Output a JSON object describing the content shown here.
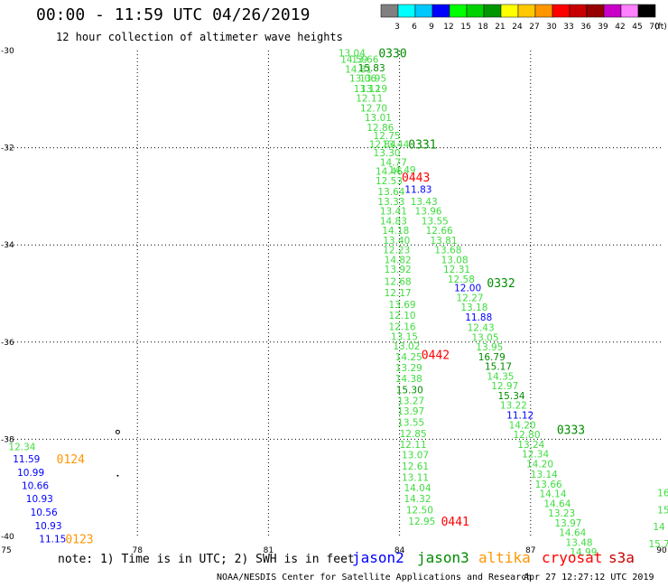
{
  "title": "00:00 - 11:59 UTC 04/26/2019",
  "subtitle": "12 hour collection of altimeter wave heights",
  "legend": {
    "unit": "(ft)",
    "labels": [
      "3",
      "6",
      "9",
      "12",
      "15",
      "18",
      "21",
      "24",
      "27",
      "30",
      "33",
      "36",
      "39",
      "42",
      "45",
      "70"
    ],
    "colors": [
      "#808080",
      "#00ffff",
      "#00c8ff",
      "#0000ff",
      "#00ff00",
      "#00d200",
      "#009600",
      "#ffff00",
      "#ffc800",
      "#ff9600",
      "#ff0000",
      "#c80000",
      "#960000",
      "#c800c8",
      "#ff80ff",
      "#000000"
    ]
  },
  "note": "note: 1) Time is in UTC; 2) SWH is in feet",
  "satellites": [
    {
      "name": "jason2",
      "color": "#0000ff"
    },
    {
      "name": "jason3",
      "color": "#008c00"
    },
    {
      "name": "altika",
      "color": "#ff9600"
    },
    {
      "name": "cryosat",
      "color": "#ff0000"
    },
    {
      "name": "s3a",
      "color": "#c80000"
    }
  ],
  "footer": "NOAA/NESDIS Center for Satellite Applications and Research",
  "footer_time": "Apr 27 12:27:12 UTC 2019",
  "chart_data": {
    "type": "scatter",
    "xlim": [
      75,
      90
    ],
    "ylim": [
      -40,
      -30
    ],
    "xticks": [
      75,
      78,
      81,
      84,
      87,
      90
    ],
    "xtick_labels": [
      "75",
      "78",
      "81",
      "84",
      "87",
      "90"
    ],
    "yticks": [
      -30,
      -32,
      -34,
      -36,
      -38,
      -40
    ],
    "ytick_labels": [
      "-30",
      "-32",
      "-34",
      "-36",
      "-38",
      "-40"
    ],
    "grid": true,
    "tracks": [
      {
        "time": "0330",
        "color": "#008c00",
        "time_x": 83.52,
        "time_y": -30.05,
        "points": [
          [
            82.6,
            -30.05,
            "13.04",
            "#40dc40"
          ],
          [
            82.65,
            -30.18,
            "14.59",
            "#40dc40"
          ],
          [
            82.9,
            -30.18,
            "13.66",
            "#40dc40"
          ],
          [
            82.75,
            -30.38,
            "14.81",
            "#40dc40"
          ],
          [
            83.05,
            -30.35,
            "15.83",
            "#008c00"
          ],
          [
            82.85,
            -30.57,
            "13.06",
            "#40dc40"
          ],
          [
            83.08,
            -30.57,
            "13.95",
            "#40dc40"
          ],
          [
            82.95,
            -30.78,
            "13.12",
            "#40dc40"
          ],
          [
            83.1,
            -30.78,
            "13.19",
            "#40dc40"
          ],
          [
            83.0,
            -30.98,
            "12.11",
            "#40dc40"
          ],
          [
            83.1,
            -31.18,
            "12.70",
            "#40dc40"
          ],
          [
            83.2,
            -31.38,
            "13.01",
            "#40dc40"
          ],
          [
            83.25,
            -31.58,
            "12.86",
            "#40dc40"
          ],
          [
            83.4,
            -31.75,
            "12.75",
            "#40dc40"
          ],
          [
            83.3,
            -31.92,
            "12.84",
            "#40dc40"
          ],
          [
            83.6,
            -31.92,
            "13.44",
            "#40dc40"
          ],
          [
            83.4,
            -32.1,
            "13.30",
            "#40dc40"
          ],
          [
            83.55,
            -32.3,
            "14.77",
            "#40dc40"
          ],
          [
            83.45,
            -32.48,
            "14.46",
            "#40dc40"
          ],
          [
            83.75,
            -32.45,
            "14.49",
            "#40dc40"
          ],
          [
            83.45,
            -32.68,
            "12.53",
            "#40dc40"
          ],
          [
            83.5,
            -32.9,
            "13.64",
            "#40dc40"
          ],
          [
            83.5,
            -33.1,
            "13.33",
            "#40dc40"
          ],
          [
            83.55,
            -33.3,
            "13.41",
            "#40dc40"
          ],
          [
            83.55,
            -33.5,
            "14.83",
            "#40dc40"
          ],
          [
            83.6,
            -33.7,
            "14.18",
            "#40dc40"
          ],
          [
            83.62,
            -33.9,
            "13.40",
            "#40dc40"
          ],
          [
            83.62,
            -34.1,
            "12.23",
            "#40dc40"
          ],
          [
            83.65,
            -34.3,
            "14.82",
            "#40dc40"
          ],
          [
            83.65,
            -34.5,
            "13.92",
            "#40dc40"
          ],
          [
            83.65,
            -34.75,
            "12.68",
            "#40dc40"
          ],
          [
            83.65,
            -34.98,
            "12.17",
            "#40dc40"
          ],
          [
            83.75,
            -35.22,
            "13.69",
            "#40dc40"
          ],
          [
            83.75,
            -35.45,
            "12.10",
            "#40dc40"
          ],
          [
            83.75,
            -35.68,
            "12.16",
            "#40dc40"
          ],
          [
            83.8,
            -35.88,
            "13.15",
            "#40dc40"
          ],
          [
            83.85,
            -36.08,
            "13.02",
            "#40dc40"
          ],
          [
            83.9,
            -36.3,
            "14.25",
            "#40dc40"
          ],
          [
            83.9,
            -36.52,
            "13.29",
            "#40dc40"
          ],
          [
            83.9,
            -36.75,
            "14.38",
            "#40dc40"
          ],
          [
            83.92,
            -36.98,
            "15.30",
            "#008c00"
          ],
          [
            83.95,
            -37.2,
            "13.27",
            "#40dc40"
          ],
          [
            83.95,
            -37.42,
            "13.97",
            "#40dc40"
          ],
          [
            83.95,
            -37.65,
            "13.55",
            "#40dc40"
          ],
          [
            84.0,
            -37.88,
            "12.85",
            "#40dc40"
          ],
          [
            84.0,
            -38.1,
            "12.11",
            "#40dc40"
          ],
          [
            84.05,
            -38.32,
            "13.07",
            "#40dc40"
          ],
          [
            84.05,
            -38.55,
            "12.61",
            "#40dc40"
          ],
          [
            84.05,
            -38.78,
            "13.11",
            "#40dc40"
          ],
          [
            84.1,
            -39.0,
            "14.04",
            "#40dc40"
          ],
          [
            84.1,
            -39.22,
            "14.32",
            "#40dc40"
          ],
          [
            84.15,
            -39.45,
            "12.50",
            "#40dc40"
          ],
          [
            84.2,
            -39.68,
            "12.95",
            "#40dc40"
          ]
        ]
      },
      {
        "time": "0331",
        "color": "#008c00",
        "time_x": 84.2,
        "time_y": -31.92,
        "points": []
      },
      {
        "time": "0443",
        "color": "#ff0000",
        "time_x": 84.05,
        "time_y": -32.6,
        "points": [
          [
            84.12,
            -32.85,
            "11.83",
            "#0000ff"
          ]
        ]
      },
      {
        "time": "0332",
        "color": "#008c00",
        "time_x": 86.0,
        "time_y": -34.78,
        "points": [
          [
            84.25,
            -33.1,
            "13.43",
            "#40dc40"
          ],
          [
            84.35,
            -33.3,
            "13.96",
            "#40dc40"
          ],
          [
            84.5,
            -33.5,
            "13.55",
            "#40dc40"
          ],
          [
            84.6,
            -33.7,
            "12.66",
            "#40dc40"
          ],
          [
            84.7,
            -33.9,
            "13.81",
            "#40dc40"
          ],
          [
            84.8,
            -34.1,
            "13.68",
            "#40dc40"
          ],
          [
            84.95,
            -34.3,
            "13.08",
            "#40dc40"
          ],
          [
            85.0,
            -34.5,
            "12.31",
            "#40dc40"
          ],
          [
            85.1,
            -34.7,
            "12.58",
            "#40dc40"
          ],
          [
            85.25,
            -34.88,
            "12.00",
            "#0000ff"
          ],
          [
            85.3,
            -35.08,
            "12.27",
            "#40dc40"
          ],
          [
            85.4,
            -35.28,
            "13.18",
            "#40dc40"
          ],
          [
            85.5,
            -35.48,
            "11.88",
            "#0000ff"
          ],
          [
            85.55,
            -35.7,
            "12.43",
            "#40dc40"
          ],
          [
            85.65,
            -35.9,
            "13.05",
            "#40dc40"
          ],
          [
            85.75,
            -36.1,
            "13.95",
            "#40dc40"
          ],
          [
            85.8,
            -36.3,
            "16.79",
            "#008c00"
          ],
          [
            85.95,
            -36.5,
            "15.17",
            "#008c00"
          ],
          [
            86.0,
            -36.7,
            "14.35",
            "#40dc40"
          ],
          [
            86.1,
            -36.9,
            "12.97",
            "#40dc40"
          ],
          [
            86.25,
            -37.1,
            "15.34",
            "#008c00"
          ],
          [
            86.3,
            -37.3,
            "13.22",
            "#40dc40"
          ],
          [
            86.45,
            -37.5,
            "11.12",
            "#0000ff"
          ],
          [
            86.5,
            -37.7,
            "14.20",
            "#40dc40"
          ],
          [
            86.6,
            -37.9,
            "12.80",
            "#40dc40"
          ],
          [
            86.7,
            -38.1,
            "13.24",
            "#40dc40"
          ],
          [
            86.8,
            -38.3,
            "12.34",
            "#40dc40"
          ],
          [
            86.9,
            -38.5,
            "14.20",
            "#40dc40"
          ],
          [
            87.0,
            -38.72,
            "13.14",
            "#40dc40"
          ],
          [
            87.1,
            -38.92,
            "13.66",
            "#40dc40"
          ],
          [
            87.2,
            -39.12,
            "14.14",
            "#40dc40"
          ],
          [
            87.3,
            -39.32,
            "14.64",
            "#40dc40"
          ],
          [
            87.4,
            -39.52,
            "13.23",
            "#40dc40"
          ],
          [
            87.55,
            -39.72,
            "13.97",
            "#40dc40"
          ],
          [
            87.65,
            -39.92,
            "14.64",
            "#40dc40"
          ],
          [
            87.8,
            -40.12,
            "13.48",
            "#40dc40"
          ],
          [
            87.9,
            -40.32,
            "14.99",
            "#40dc40"
          ]
        ]
      },
      {
        "time": "0442",
        "color": "#ff0000",
        "time_x": 84.5,
        "time_y": -36.25,
        "points": []
      },
      {
        "time": "0333",
        "color": "#008c00",
        "time_x": 87.6,
        "time_y": -37.8,
        "points": []
      },
      {
        "time": "0441",
        "color": "#ff0000",
        "time_x": 84.95,
        "time_y": -39.68,
        "points": []
      },
      {
        "time": "0124",
        "color": "#ff9600",
        "time_x": 76.15,
        "time_y": -38.4,
        "points": [
          [
            75.05,
            -38.15,
            "12.34",
            "#40dc40"
          ],
          [
            75.15,
            -38.4,
            "11.59",
            "#0000ff"
          ],
          [
            75.25,
            -38.68,
            "10.99",
            "#0000ff"
          ],
          [
            75.35,
            -38.95,
            "10.66",
            "#0000ff"
          ],
          [
            75.45,
            -39.22,
            "10.93",
            "#0000ff"
          ],
          [
            75.55,
            -39.5,
            "10.56",
            "#0000ff"
          ],
          [
            75.65,
            -39.78,
            "10.93",
            "#0000ff"
          ],
          [
            75.75,
            -40.05,
            "11.15",
            "#0000ff"
          ]
        ]
      },
      {
        "time": "0123",
        "color": "#ff9600",
        "time_x": 76.35,
        "time_y": -40.05,
        "points": []
      },
      {
        "time": "",
        "color": "#40dc40",
        "time_x": 90.0,
        "time_y": -39.0,
        "points": [
          [
            89.9,
            -39.1,
            "16",
            "#40dc40"
          ],
          [
            89.9,
            -39.45,
            "15",
            "#40dc40"
          ],
          [
            89.8,
            -39.8,
            "14",
            "#40dc40"
          ],
          [
            89.7,
            -40.15,
            "15.7",
            "#40dc40"
          ]
        ]
      }
    ]
  }
}
